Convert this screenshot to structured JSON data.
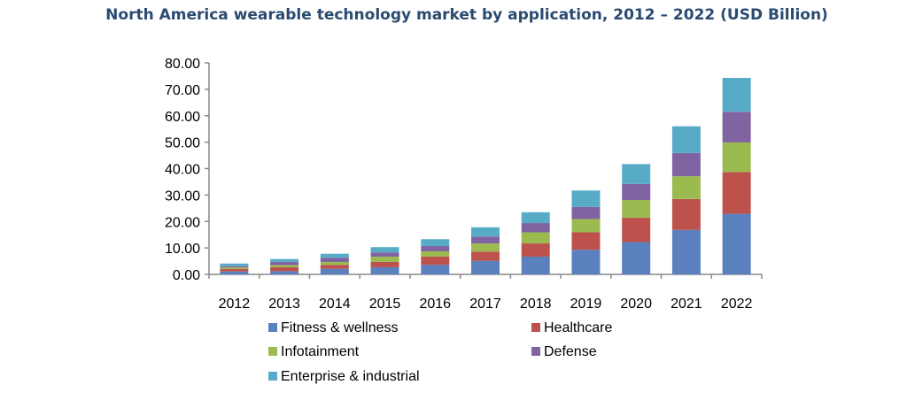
{
  "chart_data": {
    "type": "bar",
    "stacked": true,
    "title": "North America wearable technology market by application, 2012 – 2022 (USD Billion)",
    "xlabel": "",
    "ylabel": "",
    "ylim": [
      0,
      80
    ],
    "yticks": [
      "0.00",
      "10.00",
      "20.00",
      "30.00",
      "40.00",
      "50.00",
      "60.00",
      "70.00",
      "80.00"
    ],
    "grid": false,
    "legend_position": "bottom",
    "categories": [
      "2012",
      "2013",
      "2014",
      "2015",
      "2016",
      "2017",
      "2018",
      "2019",
      "2020",
      "2021",
      "2022"
    ],
    "series": [
      {
        "name": "Fitness & wellness",
        "color": "#5b80be",
        "values": [
          1.1,
          1.2,
          2.1,
          2.7,
          3.6,
          5.1,
          6.7,
          9.3,
          12.2,
          16.8,
          22.9
        ]
      },
      {
        "name": "Healthcare",
        "color": "#bd524c",
        "values": [
          0.9,
          1.5,
          1.5,
          2.0,
          3.1,
          3.5,
          5.0,
          6.6,
          9.2,
          11.7,
          15.8
        ]
      },
      {
        "name": "Infotainment",
        "color": "#9bbb50",
        "values": [
          0.6,
          0.8,
          1.1,
          2.0,
          2.0,
          3.1,
          4.2,
          5.0,
          6.7,
          8.6,
          11.2
        ]
      },
      {
        "name": "Defense",
        "color": "#8064a2",
        "values": [
          0.5,
          1.2,
          1.6,
          1.6,
          2.0,
          2.6,
          3.5,
          4.6,
          6.1,
          8.8,
          11.6
        ]
      },
      {
        "name": "Enterprise & industrial",
        "color": "#57abc7",
        "values": [
          1.0,
          1.1,
          1.5,
          2.0,
          2.6,
          3.5,
          4.1,
          6.2,
          7.5,
          10.1,
          12.8
        ]
      }
    ]
  }
}
